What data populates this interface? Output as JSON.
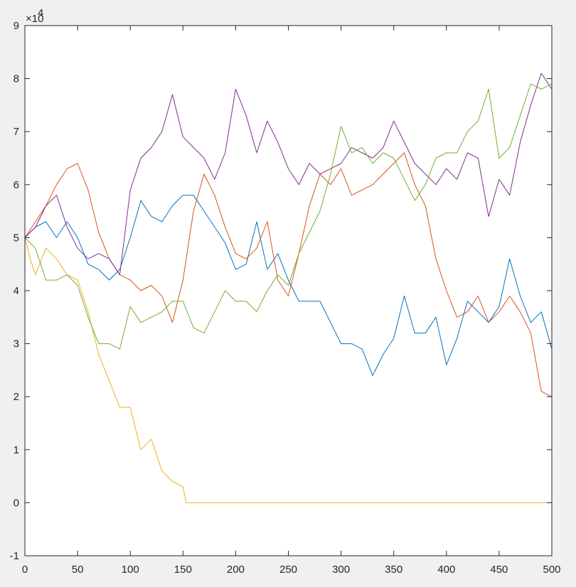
{
  "chart_data": {
    "type": "line",
    "title": "",
    "xlabel": "",
    "ylabel": "",
    "xlim": [
      0,
      500
    ],
    "ylim": [
      -1,
      9
    ],
    "y_exponent_label": "×10",
    "y_exponent_power": "4",
    "x_ticks": [
      "0",
      "50",
      "100",
      "150",
      "200",
      "250",
      "300",
      "350",
      "400",
      "450",
      "500"
    ],
    "y_ticks": [
      "-1",
      "0",
      "1",
      "2",
      "3",
      "4",
      "5",
      "6",
      "7",
      "8",
      "9"
    ],
    "grid": false,
    "series": [
      {
        "color": "#0072BD",
        "x": [
          0,
          10,
          20,
          30,
          40,
          50,
          60,
          70,
          80,
          90,
          100,
          110,
          120,
          130,
          140,
          150,
          160,
          170,
          180,
          190,
          200,
          210,
          220,
          230,
          240,
          250,
          260,
          270,
          280,
          290,
          300,
          310,
          320,
          330,
          340,
          350,
          360,
          370,
          380,
          390,
          400,
          410,
          420,
          430,
          440,
          450,
          460,
          470,
          480,
          490,
          500
        ],
        "y": [
          5.0,
          5.2,
          5.3,
          5.0,
          5.3,
          5.0,
          4.5,
          4.4,
          4.2,
          4.4,
          5.0,
          5.7,
          5.4,
          5.3,
          5.6,
          5.8,
          5.8,
          5.5,
          5.2,
          4.9,
          4.4,
          4.5,
          5.3,
          4.4,
          4.7,
          4.2,
          3.8,
          3.8,
          3.8,
          3.4,
          3.0,
          3.0,
          2.9,
          2.4,
          2.8,
          3.1,
          3.9,
          3.2,
          3.2,
          3.5,
          2.6,
          3.1,
          3.8,
          3.6,
          3.4,
          3.7,
          4.6,
          3.9,
          3.4,
          3.6,
          2.9
        ]
      },
      {
        "color": "#D95319",
        "x": [
          0,
          10,
          20,
          30,
          40,
          50,
          60,
          70,
          80,
          90,
          100,
          110,
          120,
          130,
          140,
          150,
          160,
          170,
          180,
          190,
          200,
          210,
          220,
          230,
          240,
          250,
          260,
          270,
          280,
          290,
          300,
          310,
          320,
          330,
          340,
          350,
          360,
          370,
          380,
          390,
          400,
          410,
          420,
          430,
          440,
          450,
          460,
          470,
          480,
          490,
          500
        ],
        "y": [
          5.0,
          5.3,
          5.6,
          6.0,
          6.3,
          6.4,
          5.9,
          5.1,
          4.6,
          4.3,
          4.2,
          4.0,
          4.1,
          3.9,
          3.4,
          4.2,
          5.5,
          6.2,
          5.8,
          5.2,
          4.7,
          4.6,
          4.8,
          5.3,
          4.2,
          3.9,
          4.7,
          5.6,
          6.2,
          6.0,
          6.3,
          5.8,
          5.9,
          6.0,
          6.2,
          6.4,
          6.6,
          6.0,
          5.6,
          4.6,
          4.0,
          3.5,
          3.6,
          3.9,
          3.4,
          3.6,
          3.9,
          3.6,
          3.2,
          2.1,
          2.0
        ]
      },
      {
        "color": "#EDB120",
        "x": [
          0,
          5,
          10,
          20,
          30,
          40,
          50,
          60,
          70,
          80,
          90,
          100,
          110,
          120,
          130,
          140,
          150,
          153,
          160,
          200,
          300,
          400,
          500
        ],
        "y": [
          5.0,
          4.6,
          4.3,
          4.8,
          4.6,
          4.3,
          4.2,
          3.6,
          2.8,
          2.3,
          1.8,
          1.8,
          1.0,
          1.2,
          0.6,
          0.4,
          0.3,
          0.0,
          0.0,
          0.0,
          0.0,
          0.0,
          0.0
        ]
      },
      {
        "color": "#7E2F8E",
        "x": [
          0,
          10,
          20,
          30,
          40,
          50,
          60,
          70,
          80,
          90,
          100,
          110,
          120,
          130,
          140,
          150,
          160,
          170,
          180,
          190,
          200,
          210,
          220,
          230,
          240,
          250,
          260,
          270,
          280,
          290,
          300,
          310,
          320,
          330,
          340,
          350,
          360,
          370,
          380,
          390,
          400,
          410,
          420,
          430,
          440,
          450,
          460,
          470,
          480,
          490,
          500
        ],
        "y": [
          5.0,
          5.2,
          5.6,
          5.8,
          5.2,
          4.8,
          4.6,
          4.7,
          4.6,
          4.3,
          5.9,
          6.5,
          6.7,
          7.0,
          7.7,
          6.9,
          6.7,
          6.5,
          6.1,
          6.6,
          7.8,
          7.3,
          6.6,
          7.2,
          6.8,
          6.3,
          6.0,
          6.4,
          6.2,
          6.3,
          6.4,
          6.7,
          6.6,
          6.5,
          6.7,
          7.2,
          6.8,
          6.4,
          6.2,
          6.0,
          6.3,
          6.1,
          6.6,
          6.5,
          5.4,
          6.1,
          5.8,
          6.8,
          7.5,
          8.1,
          7.8
        ]
      },
      {
        "color": "#77AC30",
        "x": [
          0,
          10,
          20,
          30,
          40,
          50,
          60,
          70,
          80,
          90,
          100,
          110,
          120,
          130,
          140,
          150,
          160,
          170,
          180,
          190,
          200,
          210,
          220,
          230,
          240,
          250,
          260,
          270,
          280,
          290,
          300,
          310,
          320,
          330,
          340,
          350,
          360,
          370,
          380,
          390,
          400,
          410,
          420,
          430,
          440,
          450,
          460,
          470,
          480,
          490,
          500
        ],
        "y": [
          5.0,
          4.8,
          4.2,
          4.2,
          4.3,
          4.1,
          3.5,
          3.0,
          3.0,
          2.9,
          3.7,
          3.4,
          3.5,
          3.6,
          3.8,
          3.8,
          3.3,
          3.2,
          3.6,
          4.0,
          3.8,
          3.8,
          3.6,
          4.0,
          4.3,
          4.1,
          4.7,
          5.1,
          5.5,
          6.2,
          7.1,
          6.6,
          6.7,
          6.4,
          6.6,
          6.5,
          6.1,
          5.7,
          6.0,
          6.5,
          6.6,
          6.6,
          7.0,
          7.2,
          7.8,
          6.5,
          6.7,
          7.3,
          7.9,
          7.8,
          7.9
        ]
      }
    ]
  }
}
